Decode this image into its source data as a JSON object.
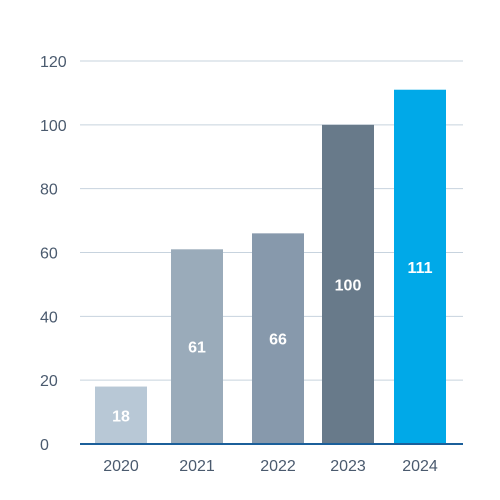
{
  "chart_data": {
    "type": "bar",
    "categories": [
      "2020",
      "2021",
      "2022",
      "2023",
      "2024"
    ],
    "values": [
      18,
      61,
      66,
      100,
      111
    ],
    "data_labels": [
      "18",
      "61",
      "66",
      "100",
      "111"
    ],
    "ylim": [
      0,
      120
    ],
    "yticks": [
      "0",
      "20",
      "40",
      "60",
      "80",
      "100",
      "120"
    ],
    "grid": true,
    "colors": [
      "#b8c8d6",
      "#9aabba",
      "#8799ac",
      "#687a8a",
      "#00a9e8"
    ],
    "grid_color": "#c7d3de",
    "axis_color": "#1b5f9a"
  }
}
